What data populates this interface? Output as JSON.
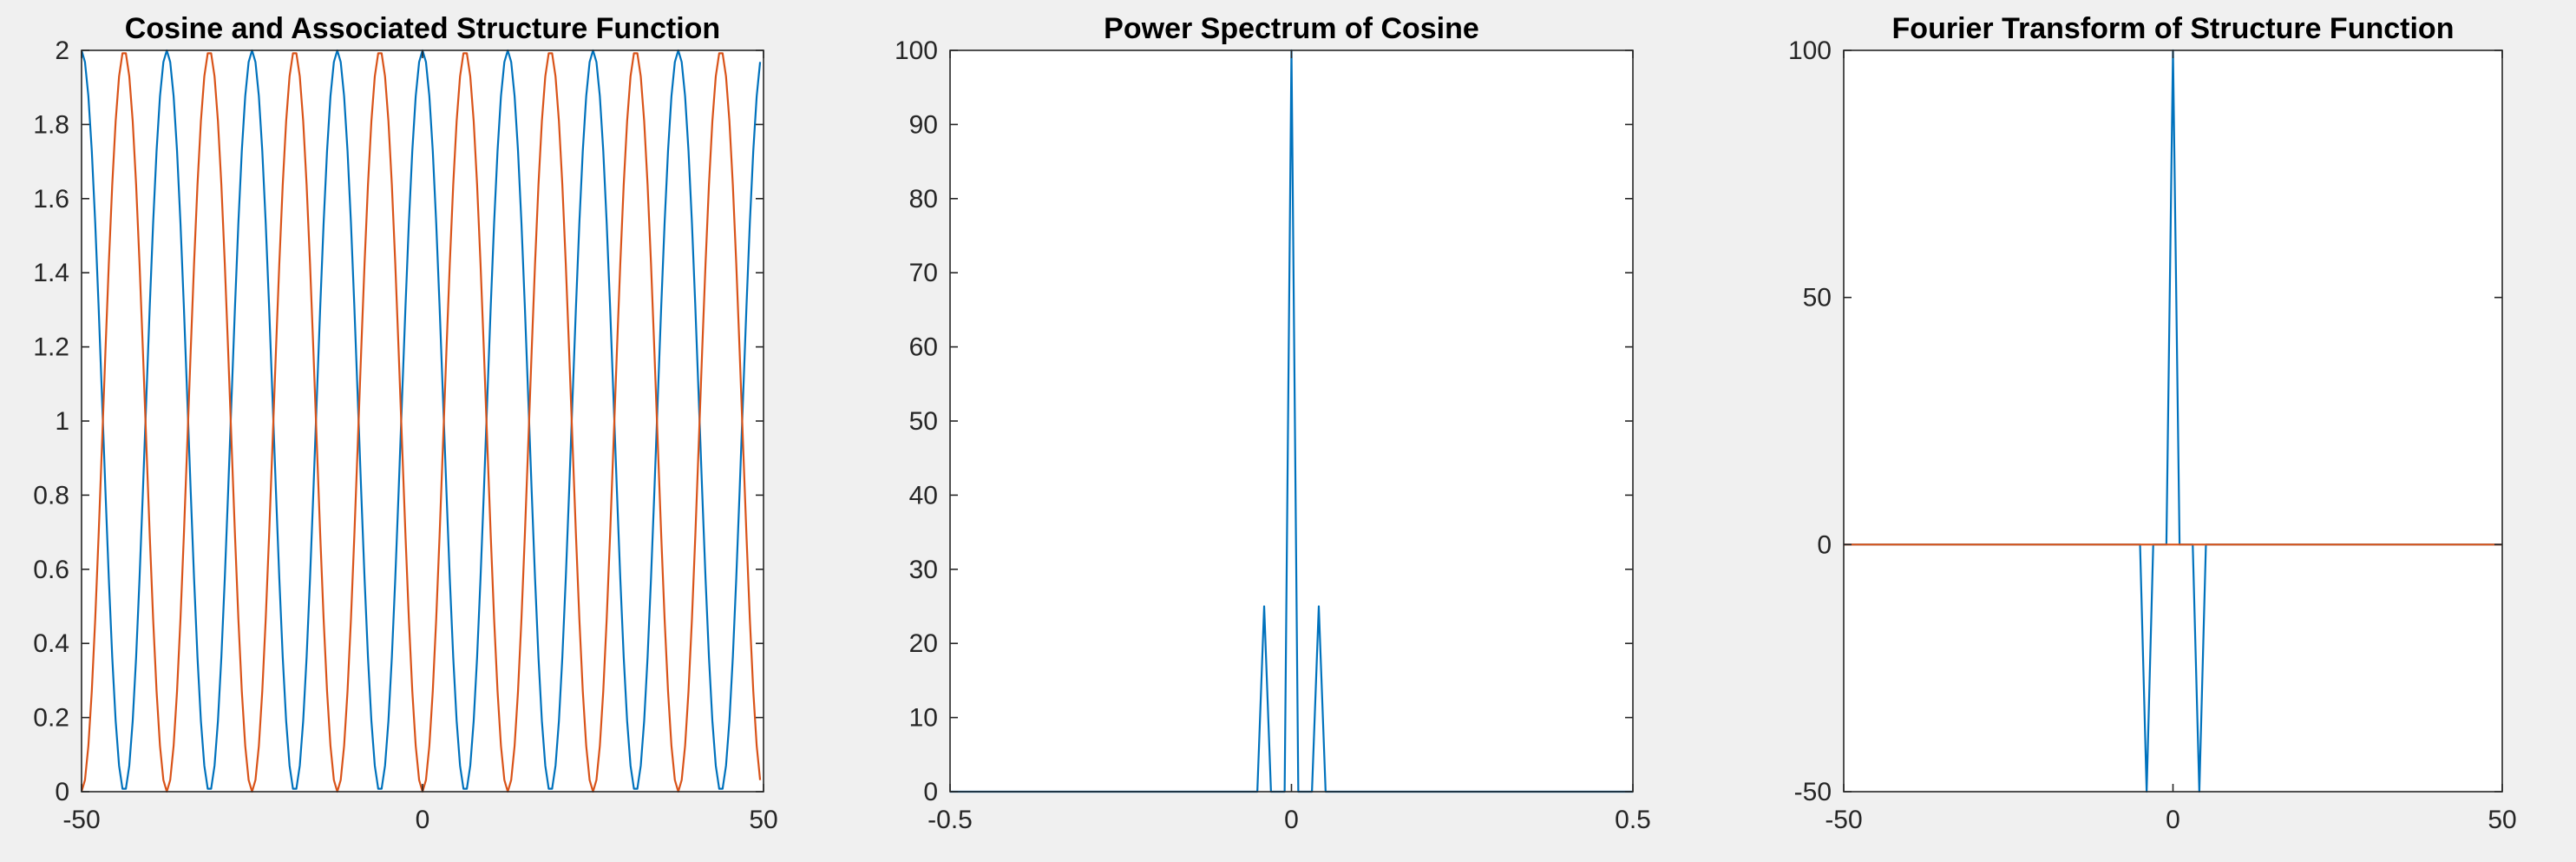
{
  "figure": {
    "background": "#f0f0f0"
  },
  "colors": {
    "series_1": "#0072bd",
    "series_2": "#d95319",
    "axes": "#262626",
    "plot_background": "#ffffff"
  },
  "chart_data": [
    {
      "type": "line",
      "title": "Cosine and Associated Structure Function",
      "xlabel": "",
      "ylabel": "",
      "xlim": [
        -50,
        50
      ],
      "ylim": [
        0,
        2
      ],
      "xticks": [
        -50,
        0,
        50
      ],
      "yticks": [
        0,
        0.2,
        0.4,
        0.6,
        0.8,
        1,
        1.2,
        1.4,
        1.6,
        1.8,
        2
      ],
      "grid": false,
      "series": [
        {
          "color": "#0072bd",
          "function": "1 + cos(2*pi*x/12.5)",
          "x_range": [
            -50,
            49.5
          ],
          "sample_step": 0.5
        },
        {
          "color": "#d95319",
          "function": "1 - cos(2*pi*x/12.5)",
          "x_range": [
            -50,
            49.5
          ],
          "sample_step": 0.5
        }
      ]
    },
    {
      "type": "line",
      "title": "Power Spectrum of Cosine",
      "xlabel": "",
      "ylabel": "",
      "xlim": [
        -0.5,
        0.5
      ],
      "ylim": [
        0,
        100
      ],
      "xticks": [
        -0.5,
        0,
        0.5
      ],
      "yticks": [
        0,
        10,
        20,
        30,
        40,
        50,
        60,
        70,
        80,
        90,
        100
      ],
      "grid": false,
      "series": [
        {
          "color": "#0072bd",
          "x": [
            -0.5,
            -0.09,
            -0.08,
            -0.07,
            -0.06,
            -0.05,
            -0.04,
            -0.03,
            -0.02,
            -0.01,
            0,
            0.01,
            0.02,
            0.03,
            0.04,
            0.05,
            0.06,
            0.07,
            0.08,
            0.09,
            0.5
          ],
          "y": [
            0,
            0,
            0,
            0,
            0,
            0,
            25,
            0,
            0,
            0,
            100,
            0,
            0,
            0,
            25,
            0,
            0,
            0,
            0,
            0,
            0
          ]
        }
      ]
    },
    {
      "type": "line",
      "title": "Fourier Transform of Structure Function",
      "xlabel": "",
      "ylabel": "",
      "xlim": [
        -50,
        50
      ],
      "ylim": [
        -50,
        100
      ],
      "xticks": [
        -50,
        0,
        50
      ],
      "yticks": [
        -50,
        0,
        50,
        100
      ],
      "grid": false,
      "series": [
        {
          "color": "#0072bd",
          "x": [
            -50,
            -5,
            -4,
            -3,
            -2,
            -1,
            0,
            1,
            2,
            3,
            4,
            5,
            50
          ],
          "y": [
            0,
            0,
            -50,
            0,
            0,
            0,
            100,
            0,
            0,
            0,
            -50,
            0,
            0
          ]
        },
        {
          "color": "#d95319",
          "x": [
            -50,
            50
          ],
          "y": [
            0,
            0
          ]
        }
      ]
    }
  ]
}
